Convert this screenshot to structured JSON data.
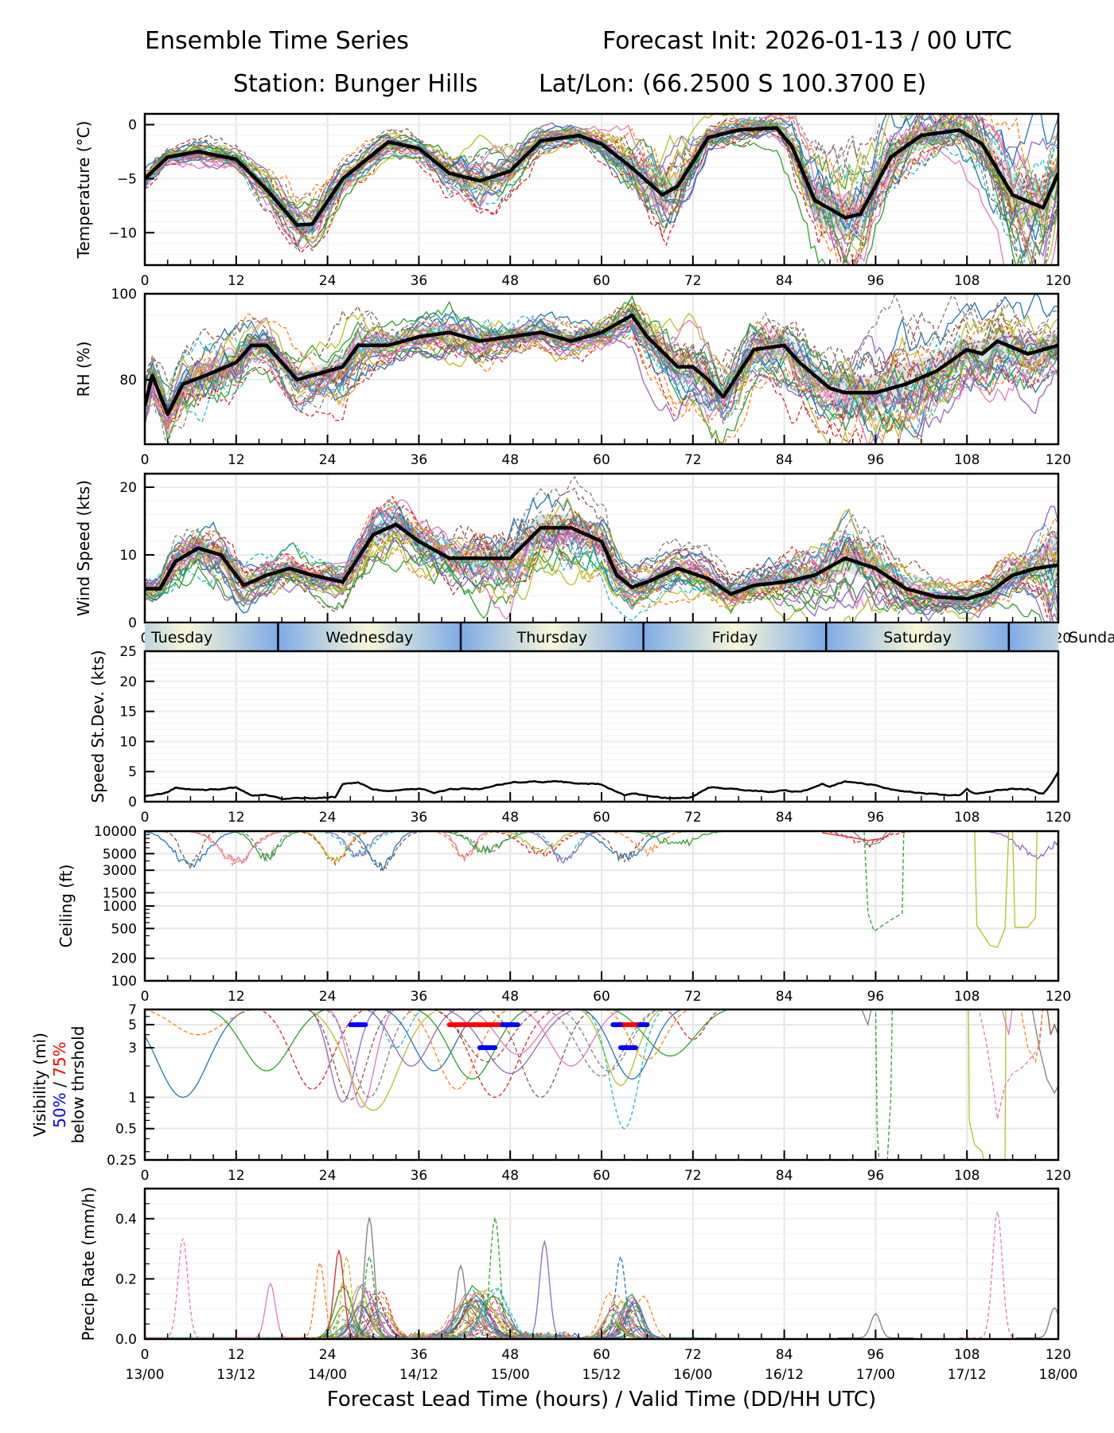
{
  "header": {
    "title": "Ensemble Time Series",
    "init": "Forecast Init: 2026-01-13 / 00 UTC",
    "station": "Station: Bunger Hills",
    "latlon": "Lat/Lon: (66.2500 S 100.3700 E)"
  },
  "colors": {
    "mean": "#000000",
    "spread": "#d9d9d9",
    "grid": "#e6e6e6",
    "vis_50": "#0000ff",
    "vis_75": "#ff0000",
    "day_band_light": "#f8f8d8",
    "day_band_dark": "#7eaae6",
    "members": [
      "#1f77b4",
      "#ff7f0e",
      "#2ca02c",
      "#d62728",
      "#9467bd",
      "#8c564b",
      "#e377c2",
      "#7f7f7f",
      "#bcbd22",
      "#17becf"
    ]
  },
  "chart_data": [
    {
      "id": "temperature",
      "type": "line",
      "ylabel": "Temperature (°C)",
      "xlim": [
        0,
        120
      ],
      "ylim": [
        -13,
        1
      ],
      "yticks": [
        0,
        -5,
        -10
      ],
      "ytick_labels": [
        "0",
        "−5",
        "−10"
      ],
      "xticks": [
        0,
        12,
        24,
        36,
        48,
        60,
        72,
        84,
        96,
        108,
        120
      ],
      "mean": {
        "x": [
          0,
          3,
          7,
          12,
          16,
          20,
          22,
          26,
          32,
          36,
          40,
          44,
          48,
          52,
          57,
          60,
          64,
          68,
          70,
          74,
          78,
          83,
          85,
          88,
          92,
          94,
          98,
          102,
          107,
          110,
          114,
          118,
          120
        ],
        "y": [
          -5,
          -3,
          -2.5,
          -3.2,
          -6,
          -9.3,
          -9.2,
          -5,
          -1.6,
          -2.2,
          -4.5,
          -5.2,
          -4.3,
          -1.5,
          -1,
          -1.8,
          -4,
          -6.5,
          -5.7,
          -1.2,
          -0.5,
          -0.3,
          -2,
          -7,
          -8.6,
          -8.3,
          -3,
          -1,
          -0.5,
          -1.8,
          -6.5,
          -7.7,
          -4.5
        ]
      },
      "spread": {
        "low": [
          -5.5,
          -3.3,
          -2.9,
          -3.6,
          -6.6,
          -10.2,
          -10,
          -5.6,
          -2,
          -2.6,
          -5.2,
          -6.2,
          -5,
          -1.9,
          -1.3,
          -2.3,
          -5,
          -8,
          -7,
          -1.7,
          -0.9,
          -0.7,
          -3,
          -9,
          -10.5,
          -10,
          -4.5,
          -2,
          -1.5,
          -3,
          -8.5,
          -9.5,
          -6
        ],
        "high": [
          -4.5,
          -2.7,
          -2.1,
          -2.8,
          -5.4,
          -8.4,
          -8.4,
          -4.4,
          -1.2,
          -1.8,
          -3.8,
          -4.4,
          -3.6,
          -1.1,
          -0.7,
          -1.3,
          -3,
          -5.2,
          -4.5,
          -0.8,
          -0.1,
          0.1,
          -1.2,
          -5.5,
          -6.5,
          -6.3,
          -1.8,
          -0.2,
          0,
          -0.6,
          -4.5,
          -5.5,
          -3
        ]
      },
      "member_notes": "~30 ensemble members (solid and dashed, tab10 colors); extremes ≈ -12.8 at 20h, -10.4 at 68h, -11.8 at 92h, -12.2 at 117h; max ≈ +0.8 at 83h"
    },
    {
      "id": "rh",
      "type": "line",
      "ylabel": "RH (%)",
      "xlim": [
        0,
        120
      ],
      "ylim": [
        65,
        100
      ],
      "yticks": [
        100,
        80
      ],
      "ytick_labels": [
        "100",
        "80"
      ],
      "xticks": [
        0,
        12,
        24,
        36,
        48,
        60,
        72,
        84,
        96,
        108,
        120
      ],
      "mean": {
        "x": [
          0,
          1,
          3,
          5,
          8,
          12,
          14,
          16,
          20,
          24,
          26,
          28,
          32,
          36,
          40,
          44,
          48,
          52,
          56,
          60,
          64,
          66,
          70,
          72,
          74,
          76,
          80,
          84,
          86,
          90,
          92,
          96,
          100,
          104,
          108,
          110,
          112,
          116,
          120
        ],
        "y": [
          74,
          81,
          72,
          79,
          81,
          84,
          88,
          88,
          80,
          82,
          83,
          88,
          88,
          90,
          91,
          89,
          90,
          91,
          89,
          91,
          95,
          90,
          83,
          83,
          80,
          76,
          87,
          88,
          84,
          78,
          77,
          77,
          79,
          82,
          87,
          86,
          89,
          86,
          88
        ]
      },
      "spread": {
        "low": [
          71,
          78,
          69,
          76,
          78,
          81,
          86,
          86,
          78,
          80,
          80,
          86,
          87,
          89,
          89,
          87,
          89,
          90,
          88,
          90,
          93,
          88,
          80,
          80,
          77,
          73,
          84,
          85,
          81,
          75,
          73,
          73,
          75,
          79,
          84,
          83,
          86,
          83,
          85
        ],
        "high": [
          77,
          84,
          75,
          82,
          84,
          87,
          90,
          90,
          82,
          84,
          86,
          91,
          90,
          92,
          93,
          91,
          92,
          93,
          91,
          93,
          97,
          93,
          86,
          86,
          83,
          79,
          89,
          91,
          87,
          81,
          81,
          81,
          84,
          86,
          90,
          89,
          92,
          89,
          91
        ]
      },
      "member_notes": "members span ~66–100%; notable dashed green near 100% at 96–100h, olive ~100% at 108–116h"
    },
    {
      "id": "wind_speed",
      "type": "line",
      "ylabel": "Wind Speed (kts)",
      "xlim": [
        0,
        120
      ],
      "ylim": [
        0,
        22
      ],
      "yticks": [
        0,
        10,
        20
      ],
      "ytick_labels": [
        "0",
        "10",
        "20"
      ],
      "xticks": [
        0,
        12,
        24,
        36,
        48,
        60,
        72,
        84,
        96,
        108,
        120
      ],
      "mean": {
        "x": [
          0,
          2,
          4,
          7,
          10,
          13,
          16,
          19,
          22,
          26,
          30,
          33,
          36,
          40,
          44,
          48,
          52,
          56,
          60,
          62,
          64,
          66,
          70,
          74,
          77,
          80,
          84,
          88,
          92,
          96,
          100,
          104,
          108,
          111,
          114,
          117,
          120
        ],
        "y": [
          5,
          5,
          9,
          11,
          10,
          5.5,
          7,
          8,
          7,
          6,
          13,
          14.5,
          12,
          9.5,
          9.5,
          9.5,
          14,
          14,
          12,
          7,
          5.2,
          6,
          8,
          6.5,
          4.2,
          5.5,
          6,
          7,
          9.5,
          8,
          5,
          3.8,
          3.5,
          4.5,
          7,
          8,
          8.5
        ]
      },
      "spread": {
        "low": [
          4,
          4,
          7.5,
          9.5,
          8.5,
          4.5,
          6,
          7,
          6,
          5,
          11.5,
          13,
          10.5,
          8,
          7.5,
          7.5,
          12,
          12,
          10,
          5.8,
          4.2,
          5,
          7,
          5.5,
          3.3,
          4.5,
          5,
          5.5,
          7.5,
          6,
          4,
          2.8,
          2.6,
          3.5,
          5.8,
          6.5,
          6.5
        ],
        "high": [
          6,
          6,
          10.5,
          12.5,
          11.5,
          6.5,
          8,
          9,
          8,
          7,
          14.5,
          16,
          13.5,
          11,
          11.5,
          11.5,
          16,
          16,
          14,
          8.2,
          6.2,
          7,
          9,
          7.5,
          5.2,
          6.5,
          7.5,
          8.5,
          11.5,
          10,
          6.2,
          4.8,
          4.4,
          5.5,
          8.3,
          10,
          14
        ]
      },
      "member_notes": "members peak ~18 kts at 30h and 51h; one member ~21 kts at 120h"
    },
    {
      "id": "speed_stdev",
      "type": "line",
      "ylabel": "Speed St.Dev. (kts)",
      "xlim": [
        0,
        120
      ],
      "ylim": [
        0,
        25
      ],
      "yticks": [
        0,
        5,
        10,
        15,
        20,
        25
      ],
      "ytick_labels": [
        "0",
        "5",
        "10",
        "15",
        "20",
        "25"
      ],
      "xticks": [
        0,
        12,
        24,
        36,
        48,
        60,
        72,
        84,
        96,
        108,
        120
      ],
      "mean": {
        "x": [
          0,
          2,
          3,
          4,
          8,
          12,
          14,
          16,
          18,
          22,
          24,
          25,
          26,
          28,
          30,
          32,
          36,
          38,
          40,
          42,
          44,
          48,
          50,
          54,
          58,
          60,
          62,
          63,
          64,
          66,
          68,
          70,
          72,
          74,
          78,
          82,
          84,
          86,
          88,
          89,
          90,
          92,
          96,
          98,
          102,
          106,
          107,
          108,
          109,
          112,
          114,
          116,
          118,
          119,
          120
        ],
        "y": [
          0.9,
          1.3,
          1.6,
          2.3,
          1.9,
          2.4,
          1.0,
          1.1,
          0.5,
          0.6,
          0.7,
          0.8,
          2.9,
          3.2,
          2.0,
          1.8,
          2.2,
          1.5,
          2.0,
          2.2,
          2.1,
          3.2,
          3.3,
          3.3,
          3.0,
          2.9,
          1.6,
          1.1,
          1.4,
          1.0,
          0.7,
          0.6,
          0.8,
          2.4,
          2.0,
          1.7,
          1.8,
          1.6,
          2.4,
          3.0,
          2.5,
          3.4,
          2.7,
          2.0,
          1.4,
          1.1,
          1.0,
          2.0,
          1.3,
          1.9,
          2.1,
          2.1,
          1.3,
          2.8,
          4.9
        ]
      }
    },
    {
      "id": "ceiling",
      "type": "line",
      "scale": "log",
      "ylabel": "Ceiling (ft)",
      "xlim": [
        0,
        120
      ],
      "ylim": [
        100,
        10000
      ],
      "yticks": [
        10000,
        5000,
        3000,
        1500,
        1000,
        500,
        200,
        100
      ],
      "ytick_labels": [
        "10000",
        "5000",
        "3000",
        "1500",
        "1000",
        "500",
        "200",
        "100"
      ],
      "xticks": [
        0,
        12,
        24,
        36,
        48,
        60,
        72,
        84,
        96,
        108,
        120
      ],
      "member_notes": "members mostly 3500–10000 ft through 72h; dashed green dips to ~450 ft at 95–99h; olive dips to ~270 ft at 109–114h"
    },
    {
      "id": "visibility",
      "type": "line",
      "scale": "log",
      "ylabel": "Visibility (mi)",
      "ylabel_50": "50%",
      "ylabel_slash": " / ",
      "ylabel_75": "75%",
      "ylabel_sub": "below thrshold",
      "xlim": [
        0,
        120
      ],
      "ylim": [
        0.25,
        7
      ],
      "yticks": [
        7,
        5,
        3,
        1,
        0.5,
        0.25
      ],
      "ytick_labels": [
        "7",
        "5",
        "3",
        "1",
        "0.5",
        "0.25"
      ],
      "xticks": [
        0,
        12,
        24,
        36,
        48,
        60,
        72,
        84,
        96,
        108,
        120
      ],
      "threshold_bars": [
        {
          "level": 5,
          "pct": 50,
          "x0": 27,
          "x1": 29
        },
        {
          "level": 5,
          "pct": 75,
          "x0": 40,
          "x1": 47
        },
        {
          "level": 5,
          "pct": 50,
          "x0": 47,
          "x1": 49
        },
        {
          "level": 3,
          "pct": 50,
          "x0": 44,
          "x1": 46
        },
        {
          "level": 5,
          "pct": 75,
          "x0": 62.5,
          "x1": 65
        },
        {
          "level": 5,
          "pct": 50,
          "x0": 61.5,
          "x1": 62.5
        },
        {
          "level": 5,
          "pct": 50,
          "x0": 65,
          "x1": 66
        },
        {
          "level": 3,
          "pct": 50,
          "x0": 62.5,
          "x1": 64.5
        }
      ],
      "member_notes": "members dip to ~0.75 mi near 30h, ~0.4 mi at 64h; green dashed to <0.25 mi at 96–98h; olive to <0.25 mi at 108–113h"
    },
    {
      "id": "precip_rate",
      "type": "line",
      "ylabel": "Precip Rate (mm/h)",
      "xlabel": "Forecast Lead Time (hours) / Valid Time (DD/HH UTC)",
      "xlim": [
        0,
        120
      ],
      "ylim": [
        0,
        0.5
      ],
      "yticks": [
        0.0,
        0.2,
        0.4
      ],
      "ytick_labels": [
        "0.0",
        "0.2",
        "0.4"
      ],
      "xticks": [
        0,
        12,
        24,
        36,
        48,
        60,
        72,
        84,
        96,
        108,
        120
      ],
      "xtick_labels": [
        "0",
        "12",
        "24",
        "36",
        "48",
        "60",
        "72",
        "84",
        "96",
        "108",
        "120"
      ],
      "xtick_sublabels": [
        "13/00",
        "13/12",
        "14/00",
        "14/12",
        "15/00",
        "15/12",
        "16/00",
        "16/12",
        "17/00",
        "17/12",
        "18/00"
      ],
      "peaks": [
        {
          "x": 5,
          "y": 0.33
        },
        {
          "x": 16.5,
          "y": 0.18
        },
        {
          "x": 23,
          "y": 0.25
        },
        {
          "x": 25.5,
          "y": 0.29
        },
        {
          "x": 26.5,
          "y": 0.27
        },
        {
          "x": 29.5,
          "y": 0.4
        },
        {
          "x": 29.5,
          "y": 0.27
        },
        {
          "x": 41.5,
          "y": 0.24
        },
        {
          "x": 46,
          "y": 0.4
        },
        {
          "x": 52.5,
          "y": 0.32
        },
        {
          "x": 62.5,
          "y": 0.27
        },
        {
          "x": 96,
          "y": 0.08
        },
        {
          "x": 112,
          "y": 0.42
        },
        {
          "x": 119.5,
          "y": 0.1
        }
      ]
    }
  ],
  "day_band": {
    "days": [
      "Tuesday",
      "Wednesday",
      "Thursday",
      "Friday",
      "Saturday",
      "Sunday"
    ],
    "boundaries_h": [
      17.5,
      41.5,
      65.5,
      89.5,
      113.5
    ]
  }
}
